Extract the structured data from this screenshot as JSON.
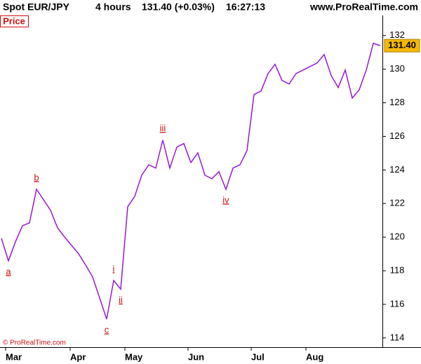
{
  "chart_data": {
    "type": "line",
    "title": "Spot EUR/JPY",
    "timeframe": "4 hours",
    "quote": "131.40 (+0.03%)",
    "time": "16:27:13",
    "source": "www.ProRealTime.com",
    "footer": "© ProRealTime.com",
    "panel_label": "Price",
    "color": "#9a19d6",
    "values": [
      119.93,
      118.59,
      119.72,
      120.68,
      120.85,
      122.85,
      122.23,
      121.6,
      120.55,
      120.01,
      119.51,
      119.01,
      118.34,
      117.63,
      116.38,
      115.12,
      117.42,
      116.9,
      121.81,
      122.43,
      123.69,
      124.31,
      124.11,
      125.78,
      124.11,
      125.36,
      125.57,
      124.44,
      125.02,
      123.69,
      123.48,
      123.9,
      122.85,
      124.11,
      124.31,
      125.15,
      128.49,
      128.7,
      129.74,
      130.29,
      129.33,
      129.12,
      129.74,
      129.95,
      130.16,
      130.37,
      130.87,
      129.62,
      128.91,
      129.95,
      128.28,
      128.78,
      129.95,
      131.54,
      131.4
    ],
    "xlim": [
      0,
      54
    ],
    "xticks": [
      {
        "value": 0.6,
        "label": "Mar"
      },
      {
        "value": 9.8,
        "label": "Apr"
      },
      {
        "value": 17.6,
        "label": "May"
      },
      {
        "value": 26.6,
        "label": "Jun"
      },
      {
        "value": 35.6,
        "label": "Jul"
      },
      {
        "value": 43.4,
        "label": "Aug"
      }
    ],
    "ylim": [
      113.45,
      133.2
    ],
    "yticks": [
      114,
      116,
      118,
      120,
      122,
      124,
      126,
      128,
      130,
      132
    ],
    "last_price": {
      "value": 131.4,
      "label": "131.40"
    },
    "annotations": [
      {
        "text": "a",
        "x": 1,
        "position": "below"
      },
      {
        "text": "b",
        "x": 5,
        "position": "above"
      },
      {
        "text": "c",
        "x": 15,
        "position": "below"
      },
      {
        "text": "i",
        "x": 16,
        "position": "above"
      },
      {
        "text": "ii",
        "x": 17,
        "position": "below"
      },
      {
        "text": "iii",
        "x": 23,
        "position": "above"
      },
      {
        "text": "iv",
        "x": 32,
        "position": "below"
      }
    ]
  }
}
